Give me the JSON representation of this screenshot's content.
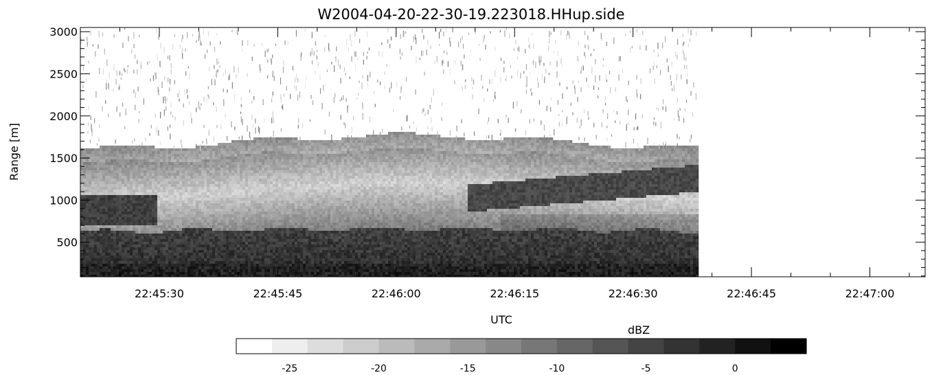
{
  "chart_data": {
    "type": "heatmap",
    "title": "W2004-04-20-22-30-19.223018.HHup.side",
    "xlabel": "UTC",
    "ylabel": "Range [m]",
    "x_tick_labels": [
      "22:45:30",
      "22:45:45",
      "22:46:00",
      "22:46:15",
      "22:46:30",
      "22:46:45",
      "22:47:00"
    ],
    "y_ticks": [
      500,
      1000,
      1500,
      2000,
      2500,
      3000
    ],
    "y_tick_labels": [
      "500",
      "1000",
      "1500",
      "2000",
      "2500",
      "3000"
    ],
    "xlim": [
      "22:45:20",
      "22:47:07"
    ],
    "ylim": [
      90,
      3050
    ],
    "data_end_time": "22:46:38",
    "grid": false,
    "colormap": "greys (white = low, black = high)",
    "colorbar": {
      "label": "dBZ",
      "range": [
        -28,
        4
      ],
      "ticks": [
        -25,
        -20,
        -15,
        -10,
        -5,
        0
      ],
      "tick_labels": [
        "-25",
        "-20",
        "-15",
        "-10",
        "-5",
        "0"
      ],
      "n_levels": 16,
      "placement": "bottom"
    }
  }
}
